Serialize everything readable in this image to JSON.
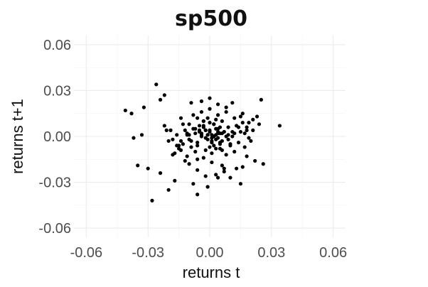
{
  "chart_data": {
    "type": "scatter",
    "title": "sp500",
    "xlabel": "returns t",
    "ylabel": "returns t+1",
    "xlim": [
      -0.066,
      0.066
    ],
    "ylim": [
      -0.066,
      0.066
    ],
    "x_ticks": [
      -0.06,
      -0.03,
      0.0,
      0.03,
      0.06
    ],
    "x_tick_labels": [
      "-0.06",
      "-0.03",
      "0.00",
      "0.03",
      "0.06"
    ],
    "y_ticks": [
      -0.06,
      -0.03,
      0.0,
      0.03,
      0.06
    ],
    "y_tick_labels": [
      "-0.06",
      "-0.03",
      "0.00",
      "0.03",
      "0.06"
    ],
    "grid": true,
    "legend": "none",
    "point_color": "#000000",
    "series": [
      {
        "x": [
          -0.041,
          -0.038,
          -0.032,
          -0.026,
          -0.024,
          -0.022,
          -0.035,
          -0.03,
          -0.028,
          -0.02,
          -0.037,
          -0.033,
          -0.021,
          -0.024,
          -0.017,
          -0.015,
          0.025,
          0.023,
          0.034,
          0.021,
          0.026,
          0.022,
          0.018,
          0.02,
          0.016,
          -0.009,
          -0.004,
          0.0,
          0.004,
          0.008,
          0.011,
          -0.006,
          -0.002,
          0.003,
          0.007,
          0.01,
          0.013,
          0.015,
          -0.008,
          -0.011,
          -0.014,
          0.016,
          0.019,
          0.024,
          -0.01,
          -0.006,
          -0.003,
          0.0,
          0.003,
          0.006,
          0.009,
          -0.012,
          0.012,
          0.018,
          -0.005,
          0.005,
          -0.001,
          0.002,
          -0.004,
          0.004,
          -0.016,
          -0.019,
          -0.022,
          -0.02,
          -0.013,
          0.014,
          0.017,
          0.006,
          -0.007,
          0.008,
          -0.003,
          0.001,
          0.01,
          -0.009,
          -0.006,
          0.0,
          0.005,
          0.009,
          -0.011,
          -0.002,
          0.003,
          0.014,
          0.017,
          0.019,
          -0.014,
          -0.017,
          -0.018,
          -0.01,
          -0.006,
          -0.001,
          0.004,
          0.007,
          0.002,
          -0.004,
          0.001,
          0.005,
          -0.002,
          0.0,
          -0.005,
          0.003,
          0.007,
          -0.008,
          -0.003,
          0.002,
          -0.001,
          0.001,
          0.004,
          -0.006,
          0.006,
          0.009,
          0.011,
          -0.01,
          0.013,
          0.015,
          -0.013,
          -0.015,
          -0.018,
          0.018,
          0.021,
          -0.008,
          -0.004,
          0.0,
          0.004,
          0.008,
          0.012,
          -0.012,
          0.001,
          0.006,
          -0.006,
          -0.002,
          0.003,
          -0.009,
          0.005,
          -0.007,
          0.01,
          -0.011,
          -0.003,
          0.002,
          0.008,
          0.016,
          0.004,
          -0.003,
          0.001,
          -0.002,
          0.004,
          0.007,
          -0.004,
          -0.007,
          0.002,
          0.012,
          -0.014,
          -0.016,
          0.015,
          -0.005,
          0.005,
          0.011,
          -0.01,
          0.0,
          0.006,
          -0.001,
          0.003,
          0.001,
          -0.001
        ],
        "y": [
          0.017,
          0.015,
          0.019,
          0.034,
          0.024,
          0.027,
          -0.019,
          -0.021,
          -0.042,
          -0.035,
          -0.001,
          0.001,
          0.004,
          -0.024,
          -0.029,
          -0.006,
          0.024,
          0.013,
          0.007,
          0.011,
          -0.018,
          -0.016,
          -0.013,
          -0.003,
          -0.02,
          0.022,
          0.023,
          0.025,
          0.021,
          0.019,
          0.022,
          -0.022,
          -0.026,
          -0.025,
          -0.023,
          -0.027,
          -0.021,
          -0.031,
          -0.031,
          -0.013,
          0.012,
          0.015,
          0.009,
          0.008,
          0.008,
          0.012,
          0.01,
          0.009,
          0.011,
          0.01,
          0.006,
          0.004,
          0.002,
          0.004,
          0.007,
          0.006,
          0.012,
          0.008,
          0.002,
          0.003,
          0.001,
          0.004,
          0.007,
          -0.003,
          -0.005,
          -0.004,
          -0.007,
          -0.009,
          -0.01,
          -0.012,
          -0.014,
          -0.011,
          -0.005,
          -0.003,
          -0.006,
          -0.007,
          -0.005,
          -0.002,
          0.002,
          0.004,
          0.001,
          0.006,
          0.002,
          -0.001,
          -0.009,
          -0.011,
          -0.002,
          -0.018,
          -0.038,
          -0.033,
          -0.027,
          -0.021,
          0.0,
          0.0,
          0.001,
          0.002,
          -0.001,
          0.003,
          0.004,
          0.005,
          0.003,
          0.005,
          0.006,
          0.008,
          -0.002,
          -0.003,
          -0.001,
          -0.004,
          -0.003,
          0.001,
          0.003,
          0.001,
          0.007,
          0.013,
          0.008,
          -0.008,
          -0.012,
          0.006,
          0.004,
          0.014,
          0.016,
          0.018,
          0.014,
          0.016,
          0.012,
          -0.016,
          -0.017,
          -0.019,
          -0.015,
          -0.009,
          -0.008,
          -0.007,
          -0.008,
          0.005,
          -0.006,
          0.001,
          0.01,
          -0.006,
          0.0,
          0.009,
          0.002,
          0.007,
          -0.004,
          0.004,
          0.005,
          0.003,
          0.001,
          0.002,
          0.0,
          -0.01,
          -0.003,
          -0.006,
          0.003,
          0.003,
          -0.004,
          0.0,
          -0.002,
          0.004,
          0.002,
          0.001,
          -0.002,
          -0.001,
          0.001
        ]
      }
    ]
  }
}
